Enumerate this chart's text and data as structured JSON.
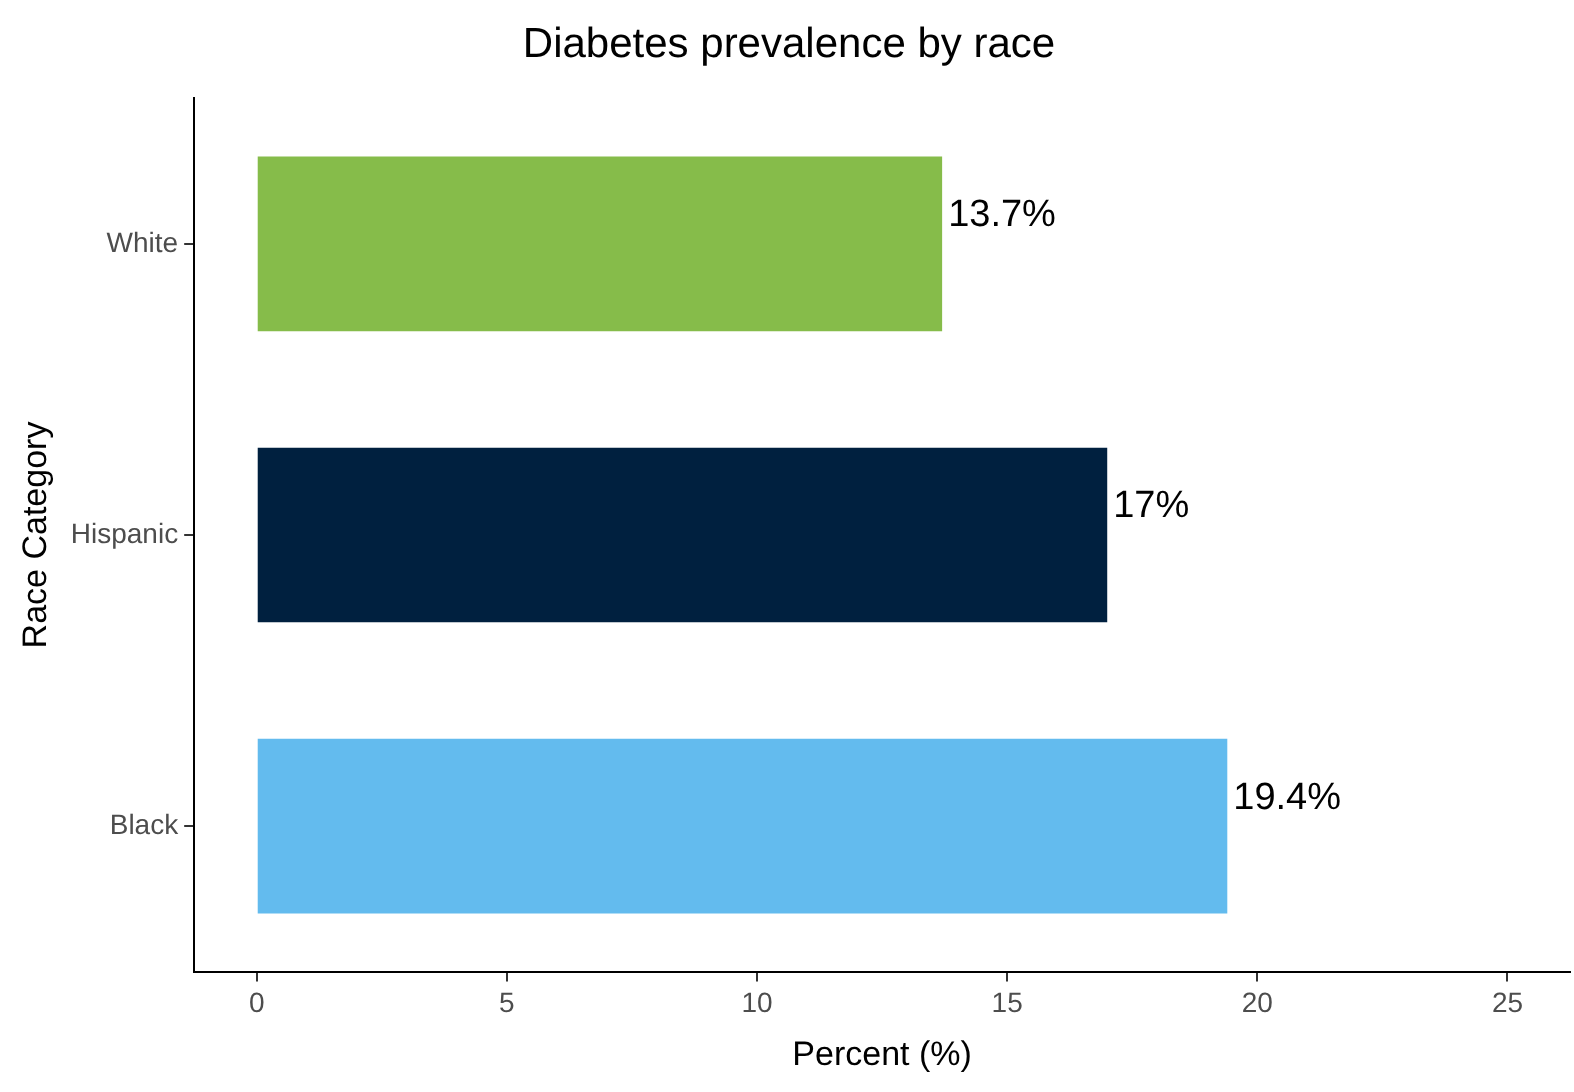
{
  "chart_data": {
    "type": "bar",
    "orientation": "horizontal",
    "title": "Diabetes prevalence by race",
    "xlabel": "Percent (%)",
    "ylabel": "Race Category",
    "categories": [
      "White",
      "Hispanic",
      "Black"
    ],
    "values": [
      13.7,
      17,
      19.4
    ],
    "colors": [
      "#86bc4a",
      "#00203f",
      "#63bbee"
    ],
    "value_labels": [
      "13.7%",
      "17%",
      "19.4%"
    ],
    "xlim": [
      -1.25,
      26.25
    ],
    "xticks": [
      0,
      5,
      10,
      15,
      20,
      25
    ],
    "grid": false,
    "legend": false
  }
}
